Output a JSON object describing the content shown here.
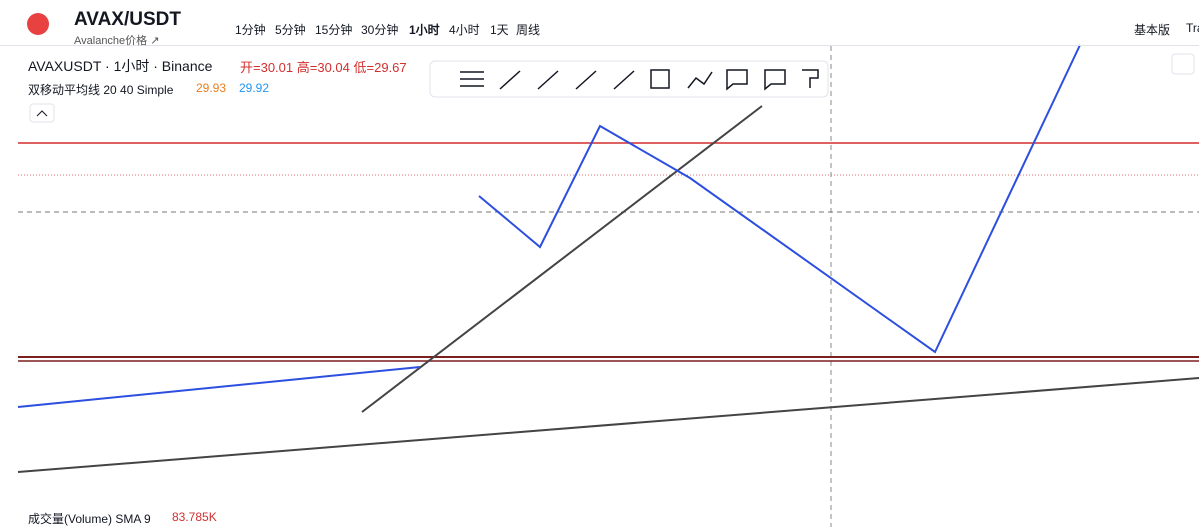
{
  "header": {
    "symbol": "AVAX/USDT",
    "subtitle": "Avalanche价格 ↗",
    "intervals": [
      "1分钟",
      "5分钟",
      "15分钟",
      "30分钟",
      "1小时",
      "4小时",
      "1天",
      "周线"
    ],
    "right_tabs": [
      "基本版",
      "Tra"
    ]
  },
  "legend": {
    "title": "AVAXUSDT · 1小时 · Binance",
    "ohlc": [
      "开=30.01",
      "高=30.04",
      "低=29.67"
    ],
    "ma_name": "双移动平均线 20 40 Simple",
    "ma_values": [
      "29.93",
      "29.92"
    ]
  },
  "volume": {
    "name": "成交量(Volume) SMA 9",
    "value": "83.785K"
  }
}
